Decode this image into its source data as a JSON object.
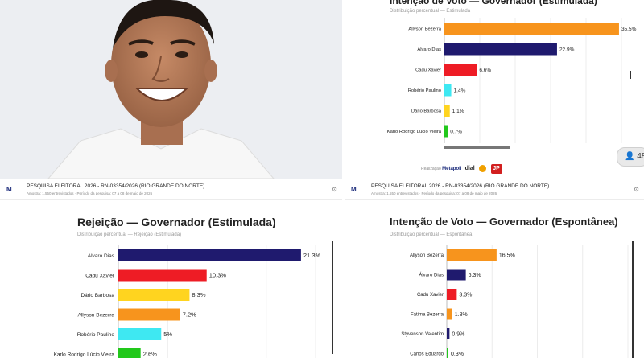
{
  "colors": {
    "orange": "#f7941d",
    "navy": "#1f1a6e",
    "red": "#ee1c25",
    "cyan": "#3ee8f2",
    "yellow": "#ffd41f",
    "green": "#22c81b",
    "grid": "#ececec",
    "axis": "#333333"
  },
  "strips": {
    "left": {
      "logo": "M",
      "title": "PESQUISA ELEITORAL 2026 - RN-03354/2026 (RIO GRANDE DO NORTE)",
      "sub": "Amostra: 1.550 entrevistados · Período da pesquisa: 07 a 08 de maio de 2026",
      "gear": "⚙"
    },
    "right": {
      "logo": "M",
      "title": "PESQUISA ELEITORAL 2026 - RN-03354/2026 (RIO GRANDE DO NORTE)",
      "sub": "Amostra: 1.550 entrevistados · Período da pesquisa: 07 a 08 de maio de 2026",
      "gear": "⚙"
    }
  },
  "badge": {
    "count": "48",
    "icon": "person-icon"
  },
  "footer": {
    "brand": "Metapoll",
    "brand2": "Realização",
    "mid": "dial",
    "jp": "JP"
  },
  "chart_data": [
    {
      "type": "bar",
      "orientation": "horizontal",
      "title": "Intenção de Voto — Governador (Estimulada)",
      "subtitle": "Distribuição percentual — Estimulada",
      "categories": [
        "Allyson Bezerra",
        "Álvaro Dias",
        "Cadu Xavier",
        "Robério Paulino",
        "Dário Barbosa",
        "Karlo Rodrigo Lúcio Vieira"
      ],
      "values": [
        35.5,
        22.9,
        6.6,
        1.4,
        1.1,
        0.7
      ],
      "labels": [
        "35.5%",
        "22.9%",
        "6.6%",
        "1.4%",
        "1.1%",
        "0.7%"
      ],
      "colors": [
        "#f7941d",
        "#1f1a6e",
        "#ee1c25",
        "#3ee8f2",
        "#ffd41f",
        "#22c81b"
      ],
      "xlim": [
        0,
        36
      ]
    },
    {
      "type": "bar",
      "orientation": "horizontal",
      "title": "Rejeição — Governador (Estimulada)",
      "subtitle": "Distribuição percentual — Rejeição (Estimulada)",
      "categories": [
        "Álvaro Dias",
        "Cadu Xavier",
        "Dário Barbosa",
        "Allyson Bezerra",
        "Robério Paulino",
        "Karlo Rodrigo Lúcio Vieira"
      ],
      "values": [
        21.3,
        10.3,
        8.3,
        7.2,
        5,
        2.6
      ],
      "labels": [
        "21.3%",
        "10.3%",
        "8.3%",
        "7.2%",
        "5%",
        "2.6%"
      ],
      "colors": [
        "#1f1a6e",
        "#ee1c25",
        "#ffd41f",
        "#f7941d",
        "#3ee8f2",
        "#22c81b"
      ],
      "xlim": [
        0,
        23
      ]
    },
    {
      "type": "bar",
      "orientation": "horizontal",
      "title": "Intenção de Voto — Governador (Espontânea)",
      "subtitle": "Distribuição percentual — Espontânea",
      "categories": [
        "Allyson Bezerra",
        "Álvaro Dias",
        "Cadu Xavier",
        "Fátima Bezerra",
        "Styvenson Valentim",
        "Carlos Eduardo"
      ],
      "values": [
        16.5,
        6.3,
        3.3,
        1.8,
        0.9,
        0.3
      ],
      "labels": [
        "16.5%",
        "6.3%",
        "3.3%",
        "1.8%",
        "0.9%",
        "0.3%"
      ],
      "colors": [
        "#f7941d",
        "#1f1a6e",
        "#ee1c25",
        "#f7941d",
        "#1f1a6e",
        "#22c81b"
      ],
      "xlim": [
        0,
        60
      ]
    }
  ]
}
